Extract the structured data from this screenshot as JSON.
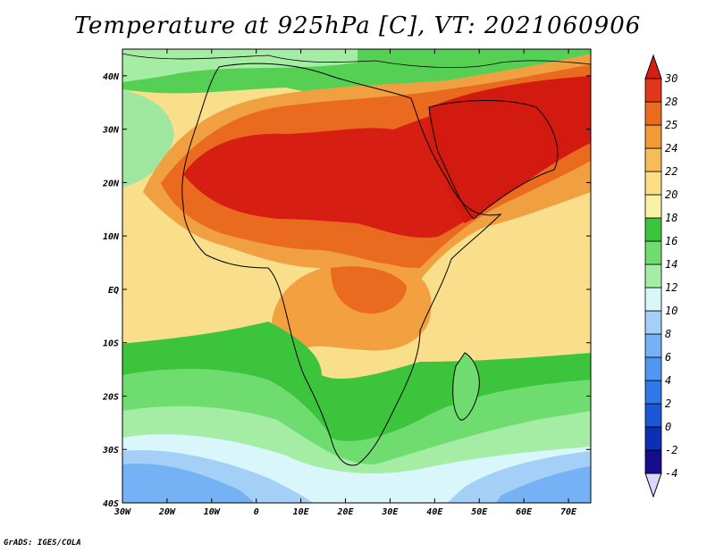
{
  "title": "Temperature at 925hPa [C], VT: 2021060906",
  "credit": "GrADS: IGES/COLA",
  "map": {
    "lon_range": [
      -30,
      75
    ],
    "lat_range": [
      -40,
      45
    ],
    "lon_ticks": [
      {
        "value": -30,
        "label": "30W"
      },
      {
        "value": -20,
        "label": "20W"
      },
      {
        "value": -10,
        "label": "10W"
      },
      {
        "value": 0,
        "label": "0"
      },
      {
        "value": 10,
        "label": "10E"
      },
      {
        "value": 20,
        "label": "20E"
      },
      {
        "value": 30,
        "label": "30E"
      },
      {
        "value": 40,
        "label": "40E"
      },
      {
        "value": 50,
        "label": "50E"
      },
      {
        "value": 60,
        "label": "60E"
      },
      {
        "value": 70,
        "label": "70E"
      }
    ],
    "lat_ticks": [
      {
        "value": 40,
        "label": "40N"
      },
      {
        "value": 30,
        "label": "30N"
      },
      {
        "value": 20,
        "label": "20N"
      },
      {
        "value": 10,
        "label": "10N"
      },
      {
        "value": 0,
        "label": "EQ"
      },
      {
        "value": -10,
        "label": "10S"
      },
      {
        "value": -20,
        "label": "20S"
      },
      {
        "value": -30,
        "label": "30S"
      },
      {
        "value": -40,
        "label": "40S"
      }
    ]
  },
  "colorbar": {
    "levels": [
      -4,
      -2,
      0,
      2,
      4,
      6,
      8,
      10,
      12,
      14,
      16,
      18,
      20,
      22,
      24,
      25,
      28,
      30
    ],
    "level_labels": [
      "-4",
      "-2",
      "0",
      "2",
      "4",
      "6",
      "8",
      "10",
      "12",
      "14",
      "16",
      "18",
      "20",
      "22",
      "24",
      "25",
      "28",
      "30"
    ],
    "colors": [
      "#160c8c",
      "#0d2fb5",
      "#1a56d6",
      "#2f78e8",
      "#4f97f0",
      "#75b2f5",
      "#a4d0f8",
      "#d9f6fb",
      "#a5eca5",
      "#6fdc6f",
      "#3cc53c",
      "#f7f0a6",
      "#fbdd84",
      "#f7bc5a",
      "#f29a36",
      "#ea6a20",
      "#e0361a"
    ],
    "low_color": "#dcd6fb",
    "high_color": "#d61e12"
  }
}
